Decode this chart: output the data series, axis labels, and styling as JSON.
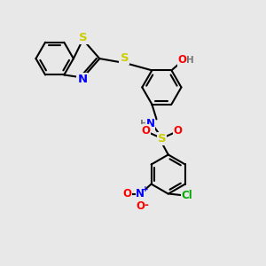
{
  "bg_color": "#e8e8e8",
  "bond_color": "#000000",
  "bond_width": 1.5,
  "atom_colors": {
    "S": "#cccc00",
    "N": "#0000ff",
    "O": "#ff0000",
    "Cl": "#00aa00",
    "H": "#777777",
    "C": "#000000"
  },
  "font_size": 8.5,
  "fig_bg": "#e8e8e8",
  "xlim": [
    0,
    10
  ],
  "ylim": [
    0,
    10
  ]
}
